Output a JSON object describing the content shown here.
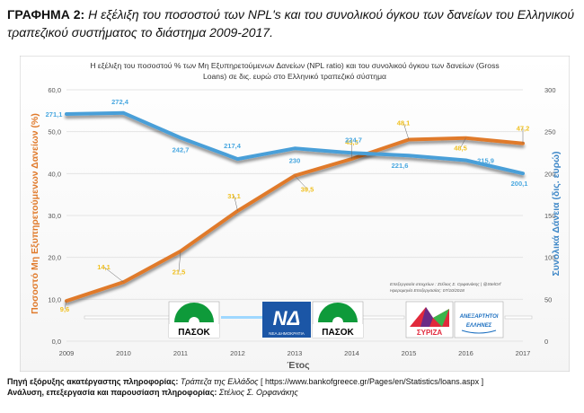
{
  "heading": {
    "prefix": "ΓΡΑΦΗΜΑ 2:",
    "text": "Η εξέλιξη του ποσοστού των NPL's και του συνολικού όγκου των δανείων του Ελληνικού τραπεζικού συστήματος το διάστημα 2009-2017."
  },
  "chart_data": {
    "type": "line",
    "title": "Η εξέλιξη του ποσοστού % των Μη Εξυπηρετούμενων Δανείων (NPL ratio) και του συνολικού όγκου των δανείων (Gross Loans) σε δις. ευρώ στο Ελληνικό τραπεζικό σύστημα",
    "title_line1": "Η εξέλιξη του ποσοστού % των Μη Εξυπηρετούμενων Δανείων (NPL ratio) και του συνολικού όγκου των δανείων (Gross",
    "title_line2": "Loans) σε δις. ευρώ στο Ελληνικό τραπεζικό σύστημα",
    "xlabel": "Έτος",
    "ylabel_left": "Ποσοστό Μη Εξυπηρετούμενων Δανείων (%)",
    "ylabel_right": "Συνολικά Δάνεια (δις. ευρώ)",
    "categories": [
      "2009",
      "2010",
      "2011",
      "2012",
      "2013",
      "2014",
      "2015",
      "2016",
      "2017"
    ],
    "ylim_left": [
      0,
      60
    ],
    "yticks_left": [
      "0,0",
      "10,0",
      "20,0",
      "30,0",
      "40,0",
      "50,0",
      "60,0"
    ],
    "ylim_right": [
      0,
      300
    ],
    "yticks_right": [
      "0",
      "50",
      "100",
      "150",
      "200",
      "250",
      "300"
    ],
    "grid": true,
    "series": [
      {
        "axis": "left",
        "color": "#e07a2b",
        "label_color": "#f0c020",
        "values": [
          9.6,
          14.1,
          21.5,
          31.1,
          39.5,
          43.5,
          48.1,
          48.5,
          47.2
        ],
        "labels": [
          "9,6",
          "14,1",
          "21,5",
          "31,1",
          "39,5",
          "43,5",
          "48,1",
          "48,5",
          "47,2"
        ]
      },
      {
        "axis": "right",
        "color": "#4a9fd8",
        "label_color": "#4aa8e0",
        "values": [
          271.1,
          272.4,
          242.7,
          217.4,
          230,
          224.7,
          221.6,
          215.9,
          200.1
        ],
        "labels": [
          "271,1",
          "272,4",
          "242,7",
          "217,4",
          "230",
          "224,7",
          "221,6",
          "215,9",
          "200,1"
        ]
      }
    ],
    "source_note_line1": "Επεξεργασία στοιχείων : Στέλιος Σ. Ορφανάκης | @StelOrf",
    "source_note_line2": "Ημερομηνία Επεξεργασίας: 07/10/2018",
    "party_logos": [
      "ΠΑΣΟΚ",
      "ΝΕΑ ΔΗΜΟΚΡΑΤΙΑ",
      "ΠΑΣΟΚ",
      "ΣΥΡΙΖΑ",
      "ΑΝΕΞΑΡΤΗΤΟΙ ΕΛΛΗΝΕΣ"
    ],
    "colors": {
      "background": "#ffffff",
      "plot_bg": "#ffffff",
      "grid": "#e4e4e4",
      "text": "#555555",
      "title_text": "#333333"
    }
  },
  "footer": {
    "line1_label": "Πηγή εξόρυξης ακατέργαστης πληροφορίας:",
    "line1_source": "Τράπεζα της Ελλάδος",
    "line1_link": "[ https://www.bankofgreece.gr/Pages/en/Statistics/loans.aspx ]",
    "line2_label": "Ανάλυση, επεξεργασία και παρουσίαση πληροφορίας:",
    "line2_author": "Στέλιος Σ. Ορφανάκης"
  }
}
